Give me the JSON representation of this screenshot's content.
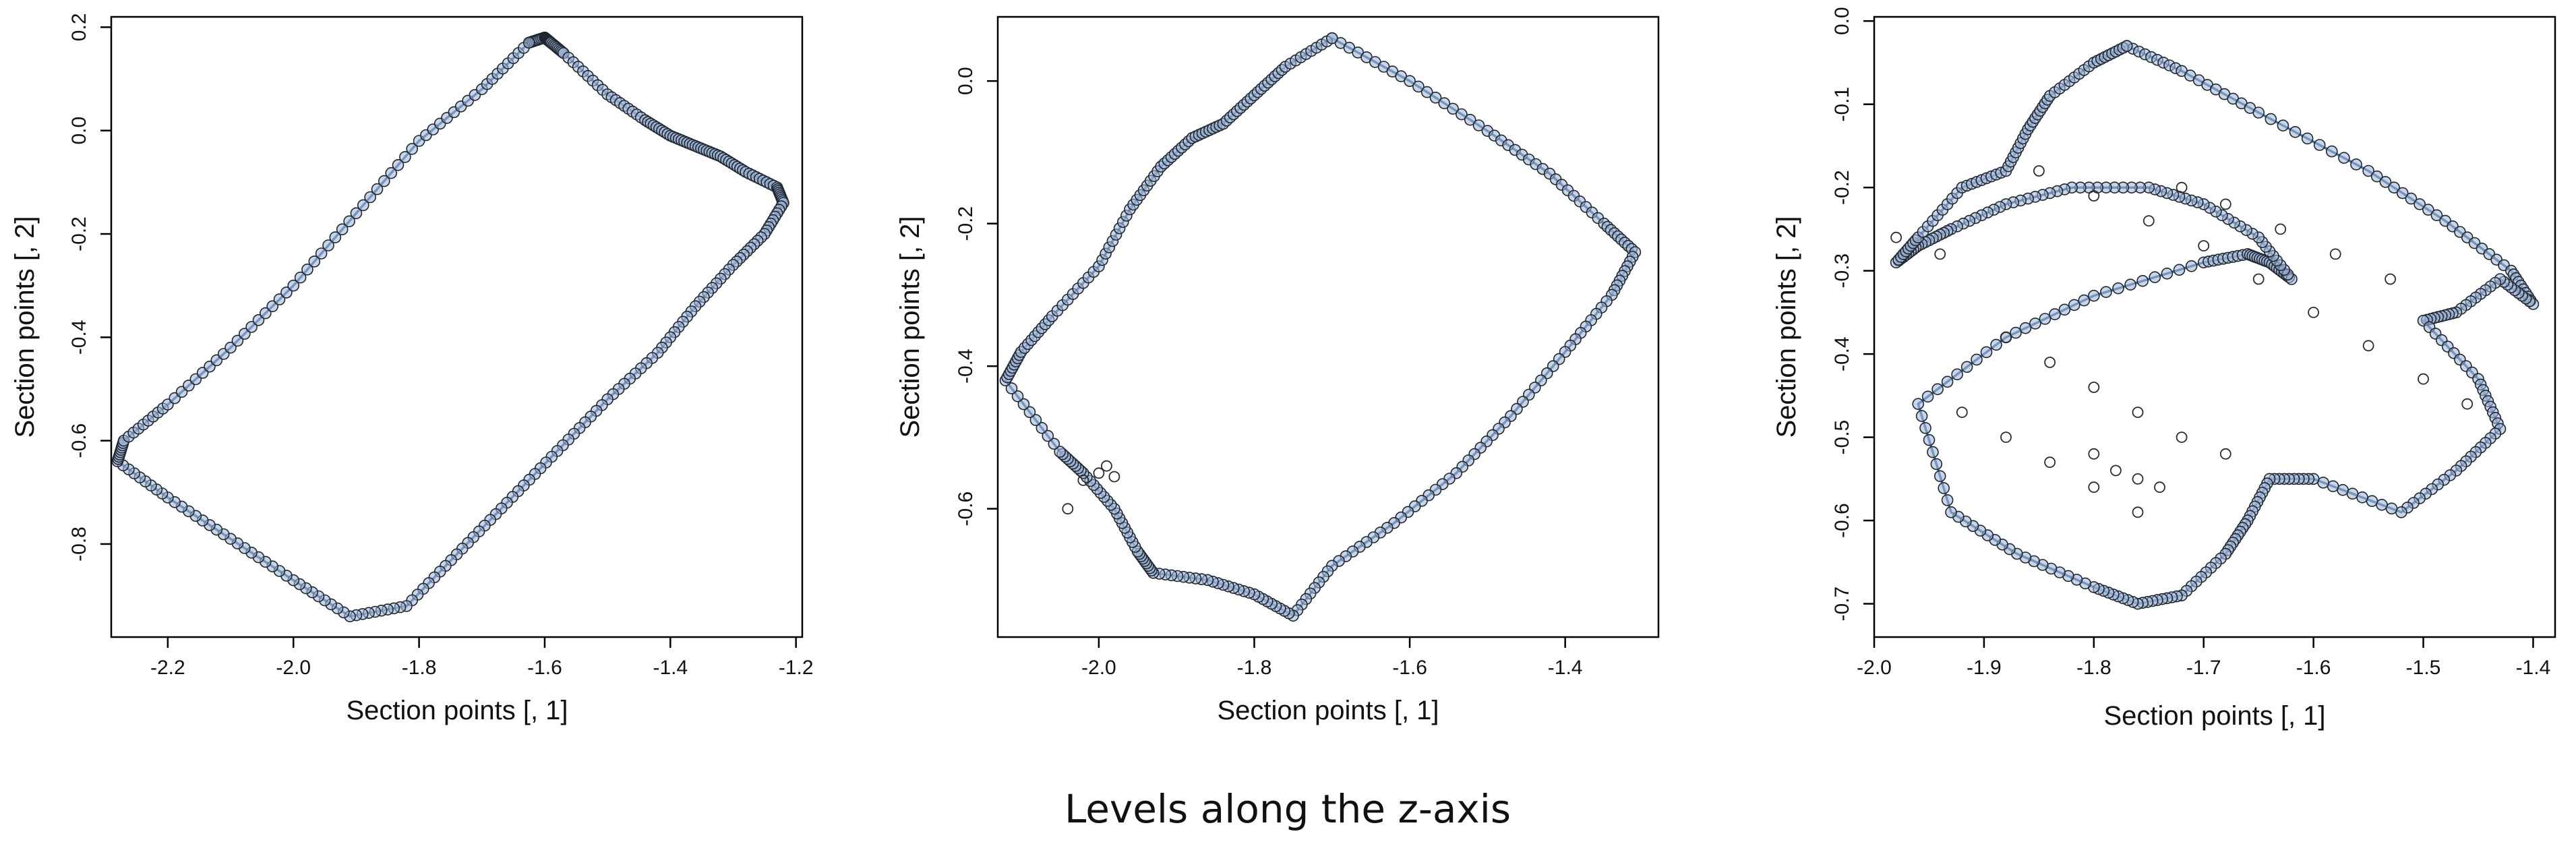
{
  "caption": "Levels along the z-axis",
  "colors": {
    "line": "#4a6fa5",
    "point_fill": "#9db4d6",
    "point_edge": "#1f2630",
    "open_point": "#2b2b2b"
  },
  "chart_data": [
    {
      "type": "line",
      "title": "",
      "xlabel": "Section points [, 1]",
      "ylabel": "Section points [, 2]",
      "xlim": [
        -2.29,
        -1.19
      ],
      "ylim": [
        -0.98,
        0.22
      ],
      "xticks": [
        -2.2,
        -2.0,
        -1.8,
        -1.6,
        -1.4,
        -1.2
      ],
      "xtick_labels": [
        "-2.2",
        "-2.0",
        "-1.8",
        "-1.6",
        "-1.4",
        "-1.2"
      ],
      "yticks": [
        -0.8,
        -0.6,
        -0.4,
        -0.2,
        0.0,
        0.2
      ],
      "ytick_labels": [
        "-0.8",
        "-0.6",
        "-0.4",
        "-0.2",
        "0.0",
        "0.2"
      ],
      "grid": false,
      "series": [
        {
          "x": [
            -1.625,
            -1.6,
            -1.59,
            -1.57,
            -1.5,
            -1.44,
            -1.4,
            -1.36,
            -1.32,
            -1.28,
            -1.23,
            -1.22,
            -1.25,
            -1.3,
            -1.36,
            -1.42,
            -1.5,
            -1.58,
            -1.66,
            -1.74,
            -1.82,
            -1.91,
            -2.0,
            -2.1,
            -2.2,
            -2.28,
            -2.27,
            -2.2,
            -2.1,
            -2.0,
            -1.9,
            -1.8,
            -1.7,
            -1.625
          ],
          "y": [
            0.17,
            0.18,
            0.17,
            0.15,
            0.07,
            0.02,
            -0.01,
            -0.03,
            -0.05,
            -0.08,
            -0.11,
            -0.14,
            -0.2,
            -0.26,
            -0.34,
            -0.43,
            -0.52,
            -0.62,
            -0.72,
            -0.82,
            -0.92,
            -0.94,
            -0.87,
            -0.79,
            -0.71,
            -0.64,
            -0.6,
            -0.53,
            -0.42,
            -0.3,
            -0.16,
            -0.02,
            0.08,
            0.17
          ]
        }
      ],
      "extra_points": {
        "x": [],
        "y": []
      }
    },
    {
      "type": "line",
      "title": "",
      "xlabel": "Section points [, 1]",
      "ylabel": "Section points [, 2]",
      "xlim": [
        -2.13,
        -1.28
      ],
      "ylim": [
        -0.78,
        0.09
      ],
      "xticks": [
        -2.0,
        -1.8,
        -1.6,
        -1.4
      ],
      "xtick_labels": [
        "-2.0",
        "-1.8",
        "-1.6",
        "-1.4"
      ],
      "yticks": [
        -0.6,
        -0.4,
        -0.2,
        0.0
      ],
      "ytick_labels": [
        "-0.6",
        "-0.4",
        "-0.2",
        "0.0"
      ],
      "grid": false,
      "series": [
        {
          "x": [
            -1.7,
            -1.6,
            -1.5,
            -1.42,
            -1.35,
            -1.31,
            -1.34,
            -1.4,
            -1.47,
            -1.54,
            -1.62,
            -1.7,
            -1.75,
            -1.8,
            -1.86,
            -1.93,
            -1.95,
            -1.98,
            -2.02,
            -2.05,
            -2.12,
            -2.1,
            -2.06,
            -2.0,
            -1.96,
            -1.92,
            -1.88,
            -1.84,
            -1.8,
            -1.76,
            -1.7
          ],
          "y": [
            0.06,
            0.0,
            -0.07,
            -0.13,
            -0.2,
            -0.24,
            -0.3,
            -0.38,
            -0.47,
            -0.55,
            -0.62,
            -0.68,
            -0.75,
            -0.72,
            -0.7,
            -0.69,
            -0.66,
            -0.6,
            -0.55,
            -0.52,
            -0.42,
            -0.38,
            -0.33,
            -0.26,
            -0.18,
            -0.12,
            -0.08,
            -0.06,
            -0.02,
            0.02,
            0.06
          ]
        }
      ],
      "extra_points": {
        "x": [
          -2.0,
          -1.99,
          -1.98,
          -2.02,
          -2.04
        ],
        "y": [
          -0.55,
          -0.54,
          -0.555,
          -0.56,
          -0.6
        ]
      }
    },
    {
      "type": "line",
      "title": "",
      "xlabel": "Section points [, 1]",
      "ylabel": "Section points [, 2]",
      "xlim": [
        -2.0,
        -1.38
      ],
      "ylim": [
        -0.74,
        0.005
      ],
      "xticks": [
        -2.0,
        -1.9,
        -1.8,
        -1.7,
        -1.6,
        -1.5,
        -1.4
      ],
      "xtick_labels": [
        "-2.0",
        "-1.9",
        "-1.8",
        "-1.7",
        "-1.6",
        "-1.5",
        "-1.4"
      ],
      "yticks": [
        -0.7,
        -0.6,
        -0.5,
        -0.4,
        -0.3,
        -0.2,
        -0.1,
        0.0
      ],
      "ytick_labels": [
        "-0.7",
        "-0.6",
        "-0.5",
        "-0.4",
        "-0.3",
        "-0.2",
        "-0.1",
        "0.0"
      ],
      "grid": false,
      "series": [
        {
          "x": [
            -1.77,
            -1.72,
            -1.65,
            -1.55,
            -1.48,
            -1.42,
            -1.4,
            -1.43,
            -1.47,
            -1.5,
            -1.45,
            -1.43,
            -1.47,
            -1.52,
            -1.6,
            -1.64,
            -1.66,
            -1.68,
            -1.72,
            -1.76,
            -1.8,
            -1.87,
            -1.93,
            -1.96,
            -1.88,
            -1.8,
            -1.7,
            -1.66,
            -1.64,
            -1.62,
            -1.65,
            -1.7,
            -1.75,
            -1.82,
            -1.88,
            -1.93,
            -1.96,
            -1.98,
            -1.96,
            -1.92,
            -1.88,
            -1.86,
            -1.84,
            -1.8,
            -1.77
          ],
          "y": [
            -0.03,
            -0.06,
            -0.11,
            -0.18,
            -0.24,
            -0.3,
            -0.34,
            -0.31,
            -0.35,
            -0.36,
            -0.43,
            -0.49,
            -0.54,
            -0.59,
            -0.55,
            -0.55,
            -0.6,
            -0.64,
            -0.69,
            -0.7,
            -0.68,
            -0.64,
            -0.59,
            -0.46,
            -0.38,
            -0.33,
            -0.29,
            -0.28,
            -0.29,
            -0.31,
            -0.26,
            -0.22,
            -0.2,
            -0.2,
            -0.22,
            -0.25,
            -0.27,
            -0.29,
            -0.26,
            -0.2,
            -0.18,
            -0.13,
            -0.09,
            -0.05,
            -0.03
          ]
        }
      ],
      "extra_points": {
        "x": [
          -1.85,
          -1.8,
          -1.75,
          -1.7,
          -1.65,
          -1.6,
          -1.55,
          -1.5,
          -1.46,
          -1.72,
          -1.68,
          -1.63,
          -1.58,
          -1.53,
          -1.88,
          -1.84,
          -1.8,
          -1.76,
          -1.72,
          -1.68,
          -1.92,
          -1.88,
          -1.84,
          -1.8,
          -1.76,
          -1.8,
          -1.78,
          -1.76,
          -1.74,
          -1.98,
          -1.94
        ],
        "y": [
          -0.18,
          -0.21,
          -0.24,
          -0.27,
          -0.31,
          -0.35,
          -0.39,
          -0.43,
          -0.46,
          -0.2,
          -0.22,
          -0.25,
          -0.28,
          -0.31,
          -0.38,
          -0.41,
          -0.44,
          -0.47,
          -0.5,
          -0.52,
          -0.47,
          -0.5,
          -0.53,
          -0.56,
          -0.59,
          -0.52,
          -0.54,
          -0.55,
          -0.56,
          -0.26,
          -0.28
        ]
      }
    }
  ]
}
